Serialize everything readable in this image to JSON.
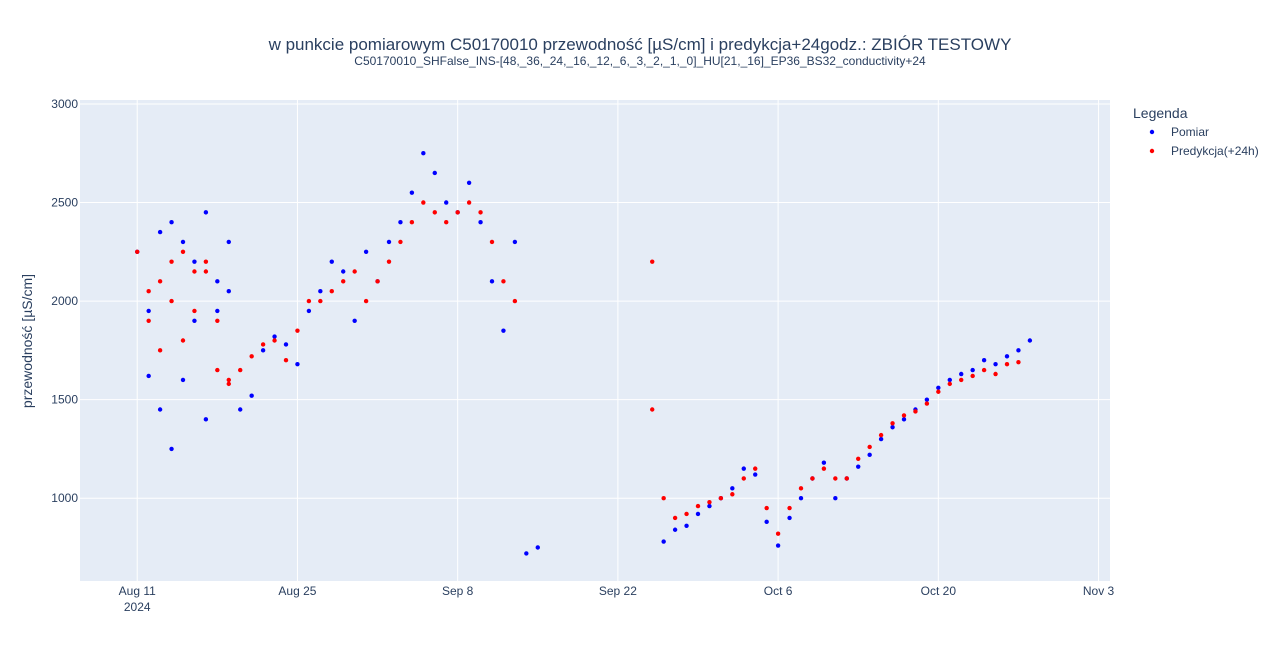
{
  "chart_data": {
    "type": "scatter",
    "title": "w punkcie pomiarowym C50170010 przewodność [µS/cm] i predykcja+24godz.: ZBIÓR TESTOWY",
    "subtitle": "C50170010_SHFalse_INS-[48,_36,_24,_16,_12,_6,_3,_2,_1,_0]_HU[21,_16]_EP36_BS32_conductivity+24",
    "ylabel": "przewodność [µS/cm]",
    "xlabel": "",
    "xlim": [
      "2024-08-06",
      "2024-11-04"
    ],
    "ylim": [
      580,
      3020
    ],
    "x_ticks": [
      {
        "date": "2024-08-11",
        "label": "Aug 11",
        "sublabel": "2024"
      },
      {
        "date": "2024-08-25",
        "label": "Aug 25",
        "sublabel": ""
      },
      {
        "date": "2024-09-08",
        "label": "Sep 8",
        "sublabel": ""
      },
      {
        "date": "2024-09-22",
        "label": "Sep 22",
        "sublabel": ""
      },
      {
        "date": "2024-10-06",
        "label": "Oct 6",
        "sublabel": ""
      },
      {
        "date": "2024-10-20",
        "label": "Oct 20",
        "sublabel": ""
      },
      {
        "date": "2024-11-03",
        "label": "Nov 3",
        "sublabel": ""
      }
    ],
    "y_ticks": [
      1000,
      1500,
      2000,
      2500,
      3000
    ],
    "grid": true,
    "legend": {
      "title": "Legenda",
      "position": "top-right"
    },
    "series": [
      {
        "name": "Pomiar",
        "color": "#0000ff",
        "x": [
          "2024-08-11",
          "2024-08-12",
          "2024-08-12",
          "2024-08-13",
          "2024-08-13",
          "2024-08-14",
          "2024-08-14",
          "2024-08-15",
          "2024-08-15",
          "2024-08-16",
          "2024-08-16",
          "2024-08-17",
          "2024-08-17",
          "2024-08-18",
          "2024-08-18",
          "2024-08-19",
          "2024-08-19",
          "2024-08-20",
          "2024-08-21",
          "2024-08-22",
          "2024-08-23",
          "2024-08-24",
          "2024-08-25",
          "2024-08-26",
          "2024-08-27",
          "2024-08-28",
          "2024-08-29",
          "2024-08-30",
          "2024-08-31",
          "2024-09-01",
          "2024-09-02",
          "2024-09-03",
          "2024-09-04",
          "2024-09-05",
          "2024-09-06",
          "2024-09-07",
          "2024-09-08",
          "2024-09-09",
          "2024-09-10",
          "2024-09-11",
          "2024-09-12",
          "2024-09-13",
          "2024-09-14",
          "2024-09-15",
          "2024-09-26",
          "2024-09-27",
          "2024-09-28",
          "2024-09-29",
          "2024-09-30",
          "2024-10-01",
          "2024-10-02",
          "2024-10-03",
          "2024-10-04",
          "2024-10-05",
          "2024-10-06",
          "2024-10-07",
          "2024-10-08",
          "2024-10-09",
          "2024-10-10",
          "2024-10-11",
          "2024-10-12",
          "2024-10-13",
          "2024-10-14",
          "2024-10-15",
          "2024-10-16",
          "2024-10-17",
          "2024-10-18",
          "2024-10-19",
          "2024-10-20",
          "2024-10-21",
          "2024-10-22",
          "2024-10-23",
          "2024-10-24",
          "2024-10-25",
          "2024-10-26",
          "2024-10-27",
          "2024-10-28"
        ],
        "y": [
          2250,
          1950,
          1620,
          2350,
          1450,
          2400,
          1250,
          2300,
          1600,
          2200,
          1900,
          2450,
          1400,
          2100,
          1950,
          2300,
          2050,
          1450,
          1520,
          1750,
          1820,
          1780,
          1680,
          1950,
          2050,
          2200,
          2150,
          1900,
          2250,
          2100,
          2300,
          2400,
          2550,
          2750,
          2650,
          2500,
          2450,
          2600,
          2400,
          2100,
          1850,
          2300,
          720,
          750,
          780,
          840,
          860,
          920,
          960,
          1000,
          1050,
          1150,
          1120,
          880,
          760,
          900,
          1000,
          1100,
          1180,
          1000,
          1100,
          1160,
          1220,
          1300,
          1360,
          1400,
          1450,
          1500,
          1560,
          1600,
          1630,
          1650,
          1700,
          1680,
          1720,
          1750,
          1800
        ]
      },
      {
        "name": "Predykcja(+24h)",
        "color": "#ff0000",
        "x": [
          "2024-08-11",
          "2024-08-12",
          "2024-08-12",
          "2024-08-13",
          "2024-08-13",
          "2024-08-14",
          "2024-08-14",
          "2024-08-15",
          "2024-08-15",
          "2024-08-16",
          "2024-08-16",
          "2024-08-17",
          "2024-08-17",
          "2024-08-18",
          "2024-08-18",
          "2024-08-19",
          "2024-08-19",
          "2024-08-20",
          "2024-08-21",
          "2024-08-22",
          "2024-08-23",
          "2024-08-24",
          "2024-08-25",
          "2024-08-26",
          "2024-08-27",
          "2024-08-28",
          "2024-08-29",
          "2024-08-30",
          "2024-08-31",
          "2024-09-01",
          "2024-09-02",
          "2024-09-03",
          "2024-09-04",
          "2024-09-05",
          "2024-09-06",
          "2024-09-07",
          "2024-09-08",
          "2024-09-09",
          "2024-09-10",
          "2024-09-11",
          "2024-09-12",
          "2024-09-13",
          "2024-09-25",
          "2024-09-25",
          "2024-09-26",
          "2024-09-27",
          "2024-09-28",
          "2024-09-29",
          "2024-09-30",
          "2024-10-01",
          "2024-10-02",
          "2024-10-03",
          "2024-10-04",
          "2024-10-05",
          "2024-10-06",
          "2024-10-07",
          "2024-10-08",
          "2024-10-09",
          "2024-10-10",
          "2024-10-11",
          "2024-10-12",
          "2024-10-13",
          "2024-10-14",
          "2024-10-15",
          "2024-10-16",
          "2024-10-17",
          "2024-10-18",
          "2024-10-19",
          "2024-10-20",
          "2024-10-21",
          "2024-10-22",
          "2024-10-23",
          "2024-10-24",
          "2024-10-25",
          "2024-10-26",
          "2024-10-27"
        ],
        "y": [
          2250,
          2050,
          1900,
          2100,
          1750,
          2200,
          2000,
          2250,
          1800,
          2150,
          1950,
          2200,
          2150,
          1900,
          1650,
          1580,
          1600,
          1650,
          1720,
          1780,
          1800,
          1700,
          1850,
          2000,
          2000,
          2050,
          2100,
          2150,
          2000,
          2100,
          2200,
          2300,
          2400,
          2500,
          2450,
          2400,
          2450,
          2500,
          2450,
          2300,
          2100,
          2000,
          2200,
          1450,
          1000,
          900,
          920,
          960,
          980,
          1000,
          1020,
          1100,
          1150,
          950,
          820,
          950,
          1050,
          1100,
          1150,
          1100,
          1100,
          1200,
          1260,
          1320,
          1380,
          1420,
          1440,
          1480,
          1540,
          1580,
          1600,
          1620,
          1650,
          1630,
          1680,
          1690
        ]
      }
    ]
  }
}
